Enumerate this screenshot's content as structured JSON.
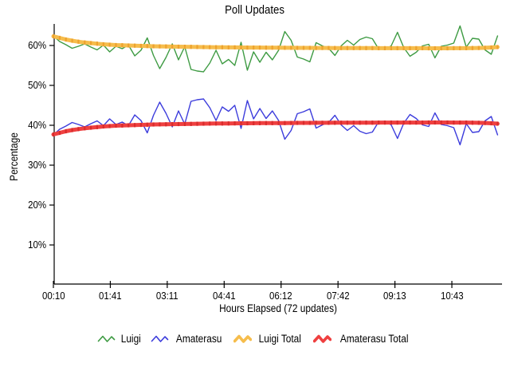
{
  "chart": {
    "title": "Poll Updates",
    "x_axis_title": "Hours Elapsed (72 updates)",
    "y_axis_title": "Percentage",
    "y_ticks": [
      {
        "label": "10%",
        "value": 10
      },
      {
        "label": "20%",
        "value": 20
      },
      {
        "label": "30%",
        "value": 30
      },
      {
        "label": "40%",
        "value": 40
      },
      {
        "label": "50%",
        "value": 50
      },
      {
        "label": "60%",
        "value": 60
      }
    ],
    "x_ticks": [
      {
        "label": "00:10",
        "at": 0
      },
      {
        "label": "01:41",
        "at": 9.1
      },
      {
        "label": "03:11",
        "at": 18.2
      },
      {
        "label": "04:41",
        "at": 27.3
      },
      {
        "label": "06:12",
        "at": 36.4
      },
      {
        "label": "07:42",
        "at": 45.5
      },
      {
        "label": "09:13",
        "at": 54.6
      },
      {
        "label": "10:43",
        "at": 63.7
      }
    ],
    "axis_color": "#000000",
    "background_color": "#ffffff"
  },
  "chart_data": {
    "type": "line",
    "title": "Poll Updates",
    "xlabel": "Hours Elapsed (72 updates)",
    "ylabel": "Percentage",
    "x_tick_labels": [
      "00:10",
      "01:41",
      "03:11",
      "04:41",
      "06:12",
      "07:42",
      "09:13",
      "10:43"
    ],
    "num_updates": 72,
    "ylim": [
      0,
      65.5
    ],
    "grid": false,
    "legend_position": "bottom",
    "series": [
      {
        "name": "Luigi",
        "color": "#3e9b43",
        "style": "thin",
        "values": [
          62.4,
          61.0,
          60.2,
          59.3,
          59.8,
          60.4,
          59.6,
          58.9,
          60.1,
          58.4,
          59.8,
          59.2,
          60.1,
          57.4,
          58.8,
          61.9,
          57.5,
          54.2,
          57.0,
          60.4,
          56.4,
          59.7,
          54.0,
          53.6,
          53.4,
          55.6,
          58.8,
          55.4,
          56.5,
          55.0,
          60.8,
          53.8,
          58.4,
          55.8,
          58.3,
          56.4,
          58.8,
          63.5,
          61.3,
          57.1,
          56.6,
          55.9,
          60.7,
          59.9,
          59.3,
          57.5,
          59.9,
          61.3,
          60.1,
          61.5,
          62.1,
          61.7,
          59.1,
          59.0,
          59.9,
          63.3,
          59.5,
          57.3,
          58.3,
          59.9,
          60.3,
          56.9,
          59.8,
          60.1,
          60.6,
          64.9,
          59.6,
          61.8,
          61.6,
          58.9,
          57.8,
          62.4
        ]
      },
      {
        "name": "Amaterasu",
        "color": "#3c3cdc",
        "style": "thin",
        "values": [
          37.6,
          39.0,
          39.8,
          40.7,
          40.2,
          39.6,
          40.4,
          41.1,
          39.9,
          41.6,
          40.2,
          40.8,
          39.9,
          42.6,
          41.2,
          38.1,
          42.5,
          45.8,
          43.0,
          39.6,
          43.6,
          40.3,
          46.0,
          46.4,
          46.6,
          44.4,
          41.2,
          44.6,
          43.5,
          45.0,
          39.2,
          46.2,
          41.6,
          44.2,
          41.7,
          43.6,
          41.2,
          36.5,
          38.7,
          42.9,
          43.4,
          44.1,
          39.3,
          40.1,
          40.7,
          42.5,
          40.1,
          38.7,
          39.9,
          38.5,
          37.9,
          38.3,
          40.9,
          41.0,
          40.1,
          36.7,
          40.5,
          42.7,
          41.7,
          40.1,
          39.7,
          43.1,
          40.2,
          39.9,
          39.4,
          35.1,
          40.4,
          38.2,
          38.4,
          41.1,
          42.2,
          37.6
        ]
      },
      {
        "name": "Luigi Total",
        "color": "#f6bd4c",
        "bead_color": "#eda22f",
        "style": "thick",
        "values": [
          62.3,
          61.9,
          61.5,
          61.2,
          60.95,
          60.75,
          60.6,
          60.45,
          60.3,
          60.2,
          60.1,
          60.05,
          60.0,
          59.95,
          59.9,
          59.85,
          59.8,
          59.78,
          59.75,
          59.72,
          59.7,
          59.68,
          59.65,
          59.62,
          59.6,
          59.58,
          59.56,
          59.55,
          59.53,
          59.52,
          59.5,
          59.49,
          59.48,
          59.47,
          59.46,
          59.45,
          59.44,
          59.43,
          59.42,
          59.41,
          59.4,
          59.4,
          59.39,
          59.38,
          59.38,
          59.37,
          59.36,
          59.36,
          59.35,
          59.35,
          59.34,
          59.34,
          59.33,
          59.33,
          59.32,
          59.32,
          59.32,
          59.31,
          59.31,
          59.31,
          59.3,
          59.3,
          59.3,
          59.3,
          59.31,
          59.32,
          59.33,
          59.35,
          59.38,
          59.42,
          59.5,
          59.6
        ]
      },
      {
        "name": "Amaterasu Total",
        "color": "#ef4040",
        "bead_color": "#d92c2c",
        "style": "thick",
        "values": [
          37.7,
          38.1,
          38.5,
          38.8,
          39.05,
          39.25,
          39.4,
          39.55,
          39.7,
          39.8,
          39.9,
          39.95,
          40.0,
          40.05,
          40.1,
          40.15,
          40.2,
          40.22,
          40.25,
          40.28,
          40.3,
          40.32,
          40.35,
          40.38,
          40.4,
          40.42,
          40.44,
          40.45,
          40.47,
          40.48,
          40.5,
          40.51,
          40.52,
          40.53,
          40.54,
          40.55,
          40.56,
          40.57,
          40.58,
          40.59,
          40.6,
          40.6,
          40.61,
          40.62,
          40.62,
          40.63,
          40.64,
          40.64,
          40.65,
          40.65,
          40.66,
          40.66,
          40.67,
          40.67,
          40.68,
          40.68,
          40.68,
          40.69,
          40.69,
          40.69,
          40.7,
          40.7,
          40.7,
          40.7,
          40.69,
          40.68,
          40.67,
          40.65,
          40.62,
          40.58,
          40.5,
          40.4
        ]
      }
    ]
  }
}
